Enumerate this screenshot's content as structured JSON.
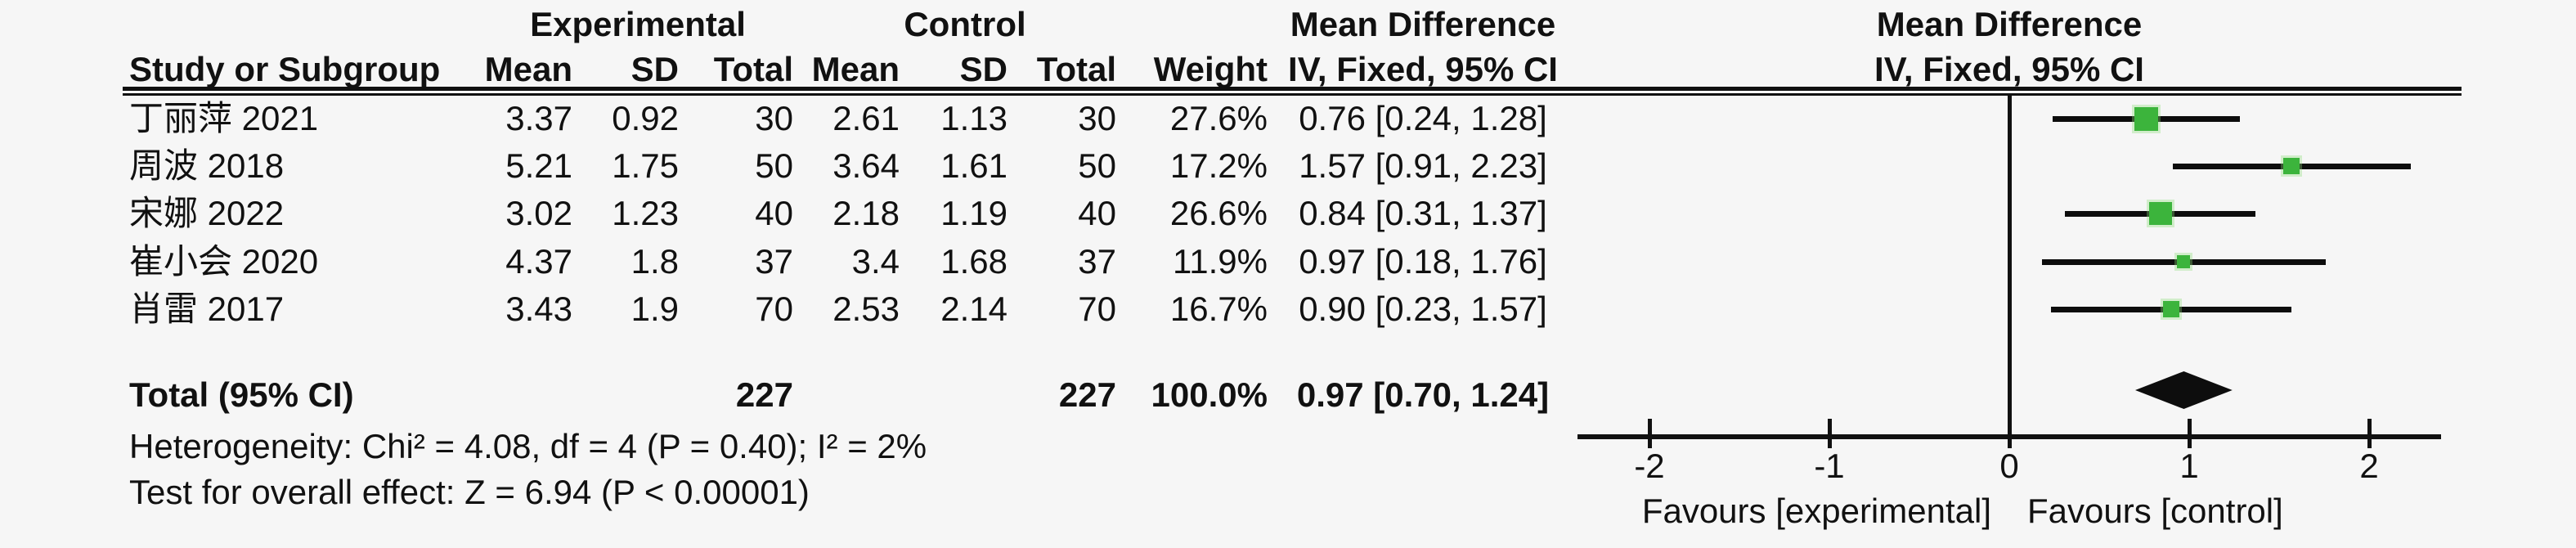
{
  "header": {
    "group_experimental": "Experimental",
    "group_control": "Control",
    "study_col": "Study or Subgroup",
    "mean_col": "Mean",
    "sd_col": "SD",
    "total_col": "Total",
    "weight_col": "Weight",
    "effect_title": "Mean Difference",
    "effect_subtitle": "IV, Fixed, 95% CI"
  },
  "table": {
    "rows": [
      {
        "study": "丁丽萍 2021",
        "mean1": "3.37",
        "sd1": "0.92",
        "total1": "30",
        "mean2": "2.61",
        "sd2": "1.13",
        "total2": "30",
        "weight": "27.6%",
        "ci": "0.76 [0.24, 1.28]"
      },
      {
        "study": "周波 2018",
        "mean1": "5.21",
        "sd1": "1.75",
        "total1": "50",
        "mean2": "3.64",
        "sd2": "1.61",
        "total2": "50",
        "weight": "17.2%",
        "ci": "1.57 [0.91, 2.23]"
      },
      {
        "study": "宋娜 2022",
        "mean1": "3.02",
        "sd1": "1.23",
        "total1": "40",
        "mean2": "2.18",
        "sd2": "1.19",
        "total2": "40",
        "weight": "26.6%",
        "ci": "0.84 [0.31, 1.37]"
      },
      {
        "study": "崔小会 2020",
        "mean1": "4.37",
        "sd1": "1.8",
        "total1": "37",
        "mean2": "3.4",
        "sd2": "1.68",
        "total2": "37",
        "weight": "11.9%",
        "ci": "0.97 [0.18, 1.76]"
      },
      {
        "study": "肖雷 2017",
        "mean1": "3.43",
        "sd1": "1.9",
        "total1": "70",
        "mean2": "2.53",
        "sd2": "2.14",
        "total2": "70",
        "weight": "16.7%",
        "ci": "0.90 [0.23, 1.57]"
      }
    ],
    "total_row": {
      "label": "Total (95% CI)",
      "total1": "227",
      "total2": "227",
      "weight": "100.0%",
      "ci": "0.97 [0.70, 1.24]"
    }
  },
  "footer": {
    "heterogeneity": "Heterogeneity: Chi² = 4.08, df = 4 (P = 0.40); I² = 2%",
    "overall_effect": "Test for overall effect: Z = 6.94 (P < 0.00001)"
  },
  "chart_data": {
    "type": "forest",
    "effect_measure": "Mean Difference",
    "method": "IV, Fixed, 95% CI",
    "xlim": [
      -2.4,
      2.4
    ],
    "ticks": [
      -2,
      -1,
      0,
      1,
      2
    ],
    "favours_left": "Favours [experimental]",
    "favours_right": "Favours [control]",
    "marker_color": "#3cb43c",
    "studies": [
      {
        "label": "丁丽萍 2021",
        "md": 0.76,
        "low": 0.24,
        "high": 1.28,
        "weight_pct": 27.6
      },
      {
        "label": "周波 2018",
        "md": 1.57,
        "low": 0.91,
        "high": 2.23,
        "weight_pct": 17.2
      },
      {
        "label": "宋娜 2022",
        "md": 0.84,
        "low": 0.31,
        "high": 1.37,
        "weight_pct": 26.6
      },
      {
        "label": "崔小会 2020",
        "md": 0.97,
        "low": 0.18,
        "high": 1.76,
        "weight_pct": 11.9
      },
      {
        "label": "肖雷 2017",
        "md": 0.9,
        "low": 0.23,
        "high": 1.57,
        "weight_pct": 16.7
      }
    ],
    "total": {
      "md": 0.97,
      "low": 0.7,
      "high": 1.24,
      "weight_pct": 100.0
    }
  }
}
